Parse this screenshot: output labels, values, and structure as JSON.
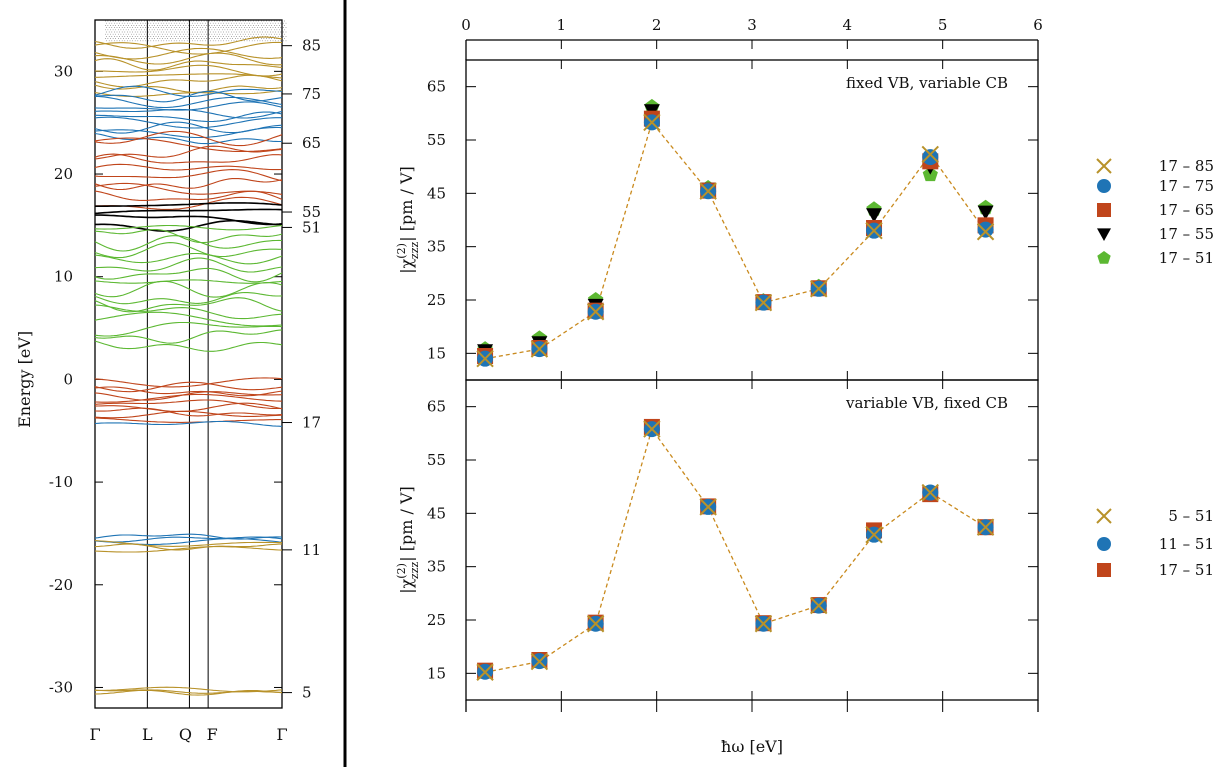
{
  "colors": {
    "gold": "#b8922a",
    "blue": "#1f74b5",
    "orange": "#c0451b",
    "black": "#000000",
    "green": "#5cb832",
    "dashed_line": "#c98a1e"
  },
  "chart_data": [
    {
      "type": "line",
      "panel": "band-structure",
      "ylabel": "Energy [eV]",
      "ylim": [
        -32,
        35
      ],
      "yticks": [
        -30,
        -20,
        -10,
        0,
        10,
        20,
        30
      ],
      "ytick_labels": [
        "-30",
        "-20",
        "-10",
        "0",
        "10",
        "20",
        "30"
      ],
      "kpoints": [
        "Γ",
        "L",
        "Q",
        "F",
        "Γ"
      ],
      "band_index_labels": [
        {
          "label": "85",
          "energy": 32.5
        },
        {
          "label": "75",
          "energy": 27.8
        },
        {
          "label": "65",
          "energy": 23.0
        },
        {
          "label": "55",
          "energy": 16.3
        },
        {
          "label": "51",
          "energy": 14.8
        },
        {
          "label": "17",
          "energy": -4.2
        },
        {
          "label": "11",
          "energy": -16.6
        },
        {
          "label": "5",
          "energy": -30.5
        }
      ],
      "band_groups": [
        {
          "color": "gold",
          "from": 28.0,
          "to": 32.8,
          "count": 10
        },
        {
          "color": "blue",
          "from": 23.5,
          "to": 28.0,
          "count": 10
        },
        {
          "color": "orange",
          "from": 17.0,
          "to": 23.5,
          "count": 10
        },
        {
          "color": "black",
          "from": 15.0,
          "to": 17.0,
          "count": 4
        },
        {
          "color": "green",
          "from": 3.5,
          "to": 14.8,
          "count": 16
        },
        {
          "color": "orange",
          "from": -4.0,
          "to": -0.3,
          "count": 10
        },
        {
          "color": "blue",
          "from": -4.3,
          "to": -4.0,
          "count": 1
        },
        {
          "color": "blue",
          "from": -15.8,
          "to": -15.3,
          "count": 3
        },
        {
          "color": "gold",
          "from": -16.6,
          "to": -16.0,
          "count": 3
        },
        {
          "color": "gold",
          "from": -30.5,
          "to": -30.2,
          "count": 3
        }
      ]
    },
    {
      "type": "scatter",
      "panel": "top",
      "annotation": "fixed VB, variable CB",
      "xlabel": "ħω [eV]",
      "ylabel": "|χ(2)zzz| [pm / V]",
      "xlim": [
        0,
        6
      ],
      "ylim": [
        10,
        70
      ],
      "xticks": [
        0,
        1,
        2,
        3,
        4,
        5,
        6
      ],
      "yticks": [
        15,
        25,
        35,
        45,
        55,
        65
      ],
      "x": [
        0.2,
        0.77,
        1.36,
        1.95,
        2.54,
        3.12,
        3.7,
        4.28,
        4.87,
        5.45
      ],
      "series": [
        {
          "name": "17 – 51",
          "marker": "pentagon",
          "color": "green",
          "values": [
            15.8,
            17.8,
            25.0,
            61.2,
            46.0,
            24.8,
            27.5,
            42.0,
            48.5,
            42.3
          ]
        },
        {
          "name": "17 – 55",
          "marker": "triangle-down",
          "color": "black",
          "values": [
            15.5,
            17.0,
            24.0,
            60.5,
            45.8,
            24.7,
            27.3,
            41.0,
            50.0,
            41.5
          ]
        },
        {
          "name": "17 – 65",
          "marker": "square",
          "color": "orange",
          "values": [
            14.5,
            16.0,
            23.0,
            59.0,
            45.5,
            24.6,
            27.2,
            38.5,
            51.0,
            39.0
          ]
        },
        {
          "name": "17 – 75",
          "marker": "circle",
          "color": "blue",
          "values": [
            14.0,
            15.8,
            22.8,
            58.3,
            45.4,
            24.5,
            27.1,
            38.0,
            51.8,
            38.2
          ]
        },
        {
          "name": "17 – 85",
          "marker": "x",
          "color": "gold",
          "values": [
            14.0,
            15.8,
            22.8,
            58.3,
            45.4,
            24.5,
            27.1,
            38.0,
            52.3,
            37.8
          ]
        }
      ],
      "legend_order": [
        "17 – 85",
        "17 – 75",
        "17 – 65",
        "17 – 55",
        "17 – 51"
      ],
      "dashed_series": "17 – 85"
    },
    {
      "type": "scatter",
      "panel": "bottom",
      "annotation": "variable VB, fixed CB",
      "xlabel": "ħω [eV]",
      "ylabel": "|χ(2)zzz| [pm / V]",
      "xlim": [
        0,
        6
      ],
      "ylim": [
        10,
        70
      ],
      "xticks": [
        0,
        1,
        2,
        3,
        4,
        5,
        6
      ],
      "yticks": [
        15,
        25,
        35,
        45,
        55,
        65
      ],
      "x": [
        0.2,
        0.77,
        1.36,
        1.95,
        2.54,
        3.12,
        3.7,
        4.28,
        4.87,
        5.45
      ],
      "series": [
        {
          "name": "17 – 51",
          "marker": "square",
          "color": "orange",
          "values": [
            15.5,
            17.5,
            24.5,
            61.2,
            46.3,
            24.4,
            27.8,
            41.8,
            48.6,
            42.4
          ]
        },
        {
          "name": "11 – 51",
          "marker": "circle",
          "color": "blue",
          "values": [
            15.3,
            17.3,
            24.3,
            60.8,
            46.2,
            24.3,
            27.7,
            41.0,
            48.9,
            42.4
          ]
        },
        {
          "name": "5 – 51",
          "marker": "x",
          "color": "gold",
          "values": [
            15.2,
            17.2,
            24.3,
            60.8,
            46.2,
            24.3,
            27.7,
            41.0,
            48.9,
            42.4
          ]
        }
      ],
      "legend_order": [
        "5 – 51",
        "11 – 51",
        "17 – 51"
      ],
      "dashed_series": "5 – 51"
    }
  ]
}
